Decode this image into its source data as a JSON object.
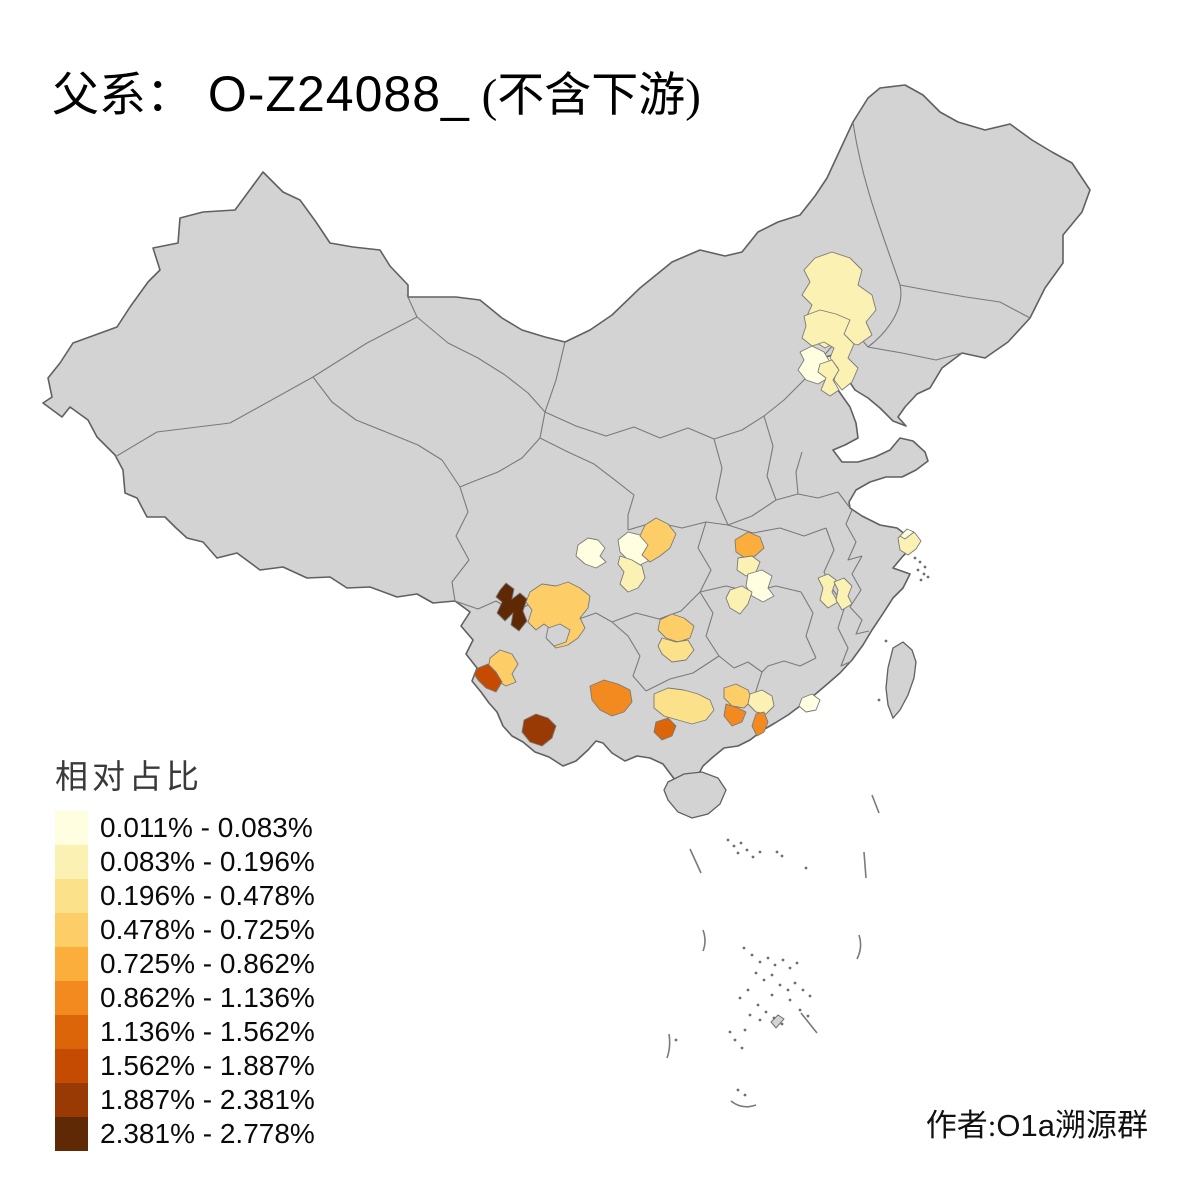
{
  "title": {
    "prefix": "父系：",
    "code": " O-Z24088_",
    "suffix": " (不含下游)"
  },
  "attribution": {
    "prefix": "作者:",
    "code": "O1a",
    "suffix": "溯源群"
  },
  "legend": {
    "title": "相对占比",
    "items": [
      {
        "label": "0.011% - 0.083%",
        "color": "#FFFEE0"
      },
      {
        "label": "0.083% - 0.196%",
        "color": "#FAF1B2"
      },
      {
        "label": "0.196% - 0.478%",
        "color": "#FCE18B"
      },
      {
        "label": "0.478% - 0.725%",
        "color": "#FDCE67"
      },
      {
        "label": "0.725% - 0.862%",
        "color": "#FCAE3C"
      },
      {
        "label": "0.862% - 1.136%",
        "color": "#F28A20"
      },
      {
        "label": "1.136% - 1.562%",
        "color": "#DC6409"
      },
      {
        "label": "1.562% - 1.887%",
        "color": "#C54B02"
      },
      {
        "label": "1.887% - 2.381%",
        "color": "#993A04"
      },
      {
        "label": "2.381% - 2.778%",
        "color": "#5F2906"
      }
    ]
  },
  "map": {
    "land_color": "#D3D3D3",
    "coast_border_color": "#606060",
    "province_border_color": "#7A7A7A",
    "sea_color": "#FFFFFF",
    "island_speck_color": "#6E6E6E",
    "regions": [
      {
        "id": "r1",
        "class": 2
      },
      {
        "id": "r2",
        "class": 2
      },
      {
        "id": "r3",
        "class": 1
      },
      {
        "id": "r4",
        "class": 2
      },
      {
        "id": "r5",
        "class": 2
      },
      {
        "id": "r6",
        "class": 1
      },
      {
        "id": "r7",
        "class": 1
      },
      {
        "id": "r8",
        "class": 1
      },
      {
        "id": "r9",
        "class": 2
      },
      {
        "id": "r10",
        "class": 4
      },
      {
        "id": "r11",
        "class": 5
      },
      {
        "id": "r12",
        "class": 2
      },
      {
        "id": "r13",
        "class": 1
      },
      {
        "id": "r14",
        "class": 2
      },
      {
        "id": "r15",
        "class": 2
      },
      {
        "id": "r16",
        "class": 2
      },
      {
        "id": "r17",
        "class": 4
      },
      {
        "id": "r18",
        "class": 3
      },
      {
        "id": "r19",
        "class": 10
      },
      {
        "id": "r20",
        "class": 4
      },
      {
        "id": "r21",
        "class": 4
      },
      {
        "id": "r22",
        "class": 8
      },
      {
        "id": "r23",
        "class": 9
      },
      {
        "id": "r24",
        "class": 6
      },
      {
        "id": "r25",
        "class": 3
      },
      {
        "id": "r26",
        "class": 7
      },
      {
        "id": "r27",
        "class": 4
      },
      {
        "id": "r28",
        "class": 6
      },
      {
        "id": "r29",
        "class": 2
      },
      {
        "id": "r30",
        "class": 6
      },
      {
        "id": "r31",
        "class": 1
      }
    ]
  }
}
